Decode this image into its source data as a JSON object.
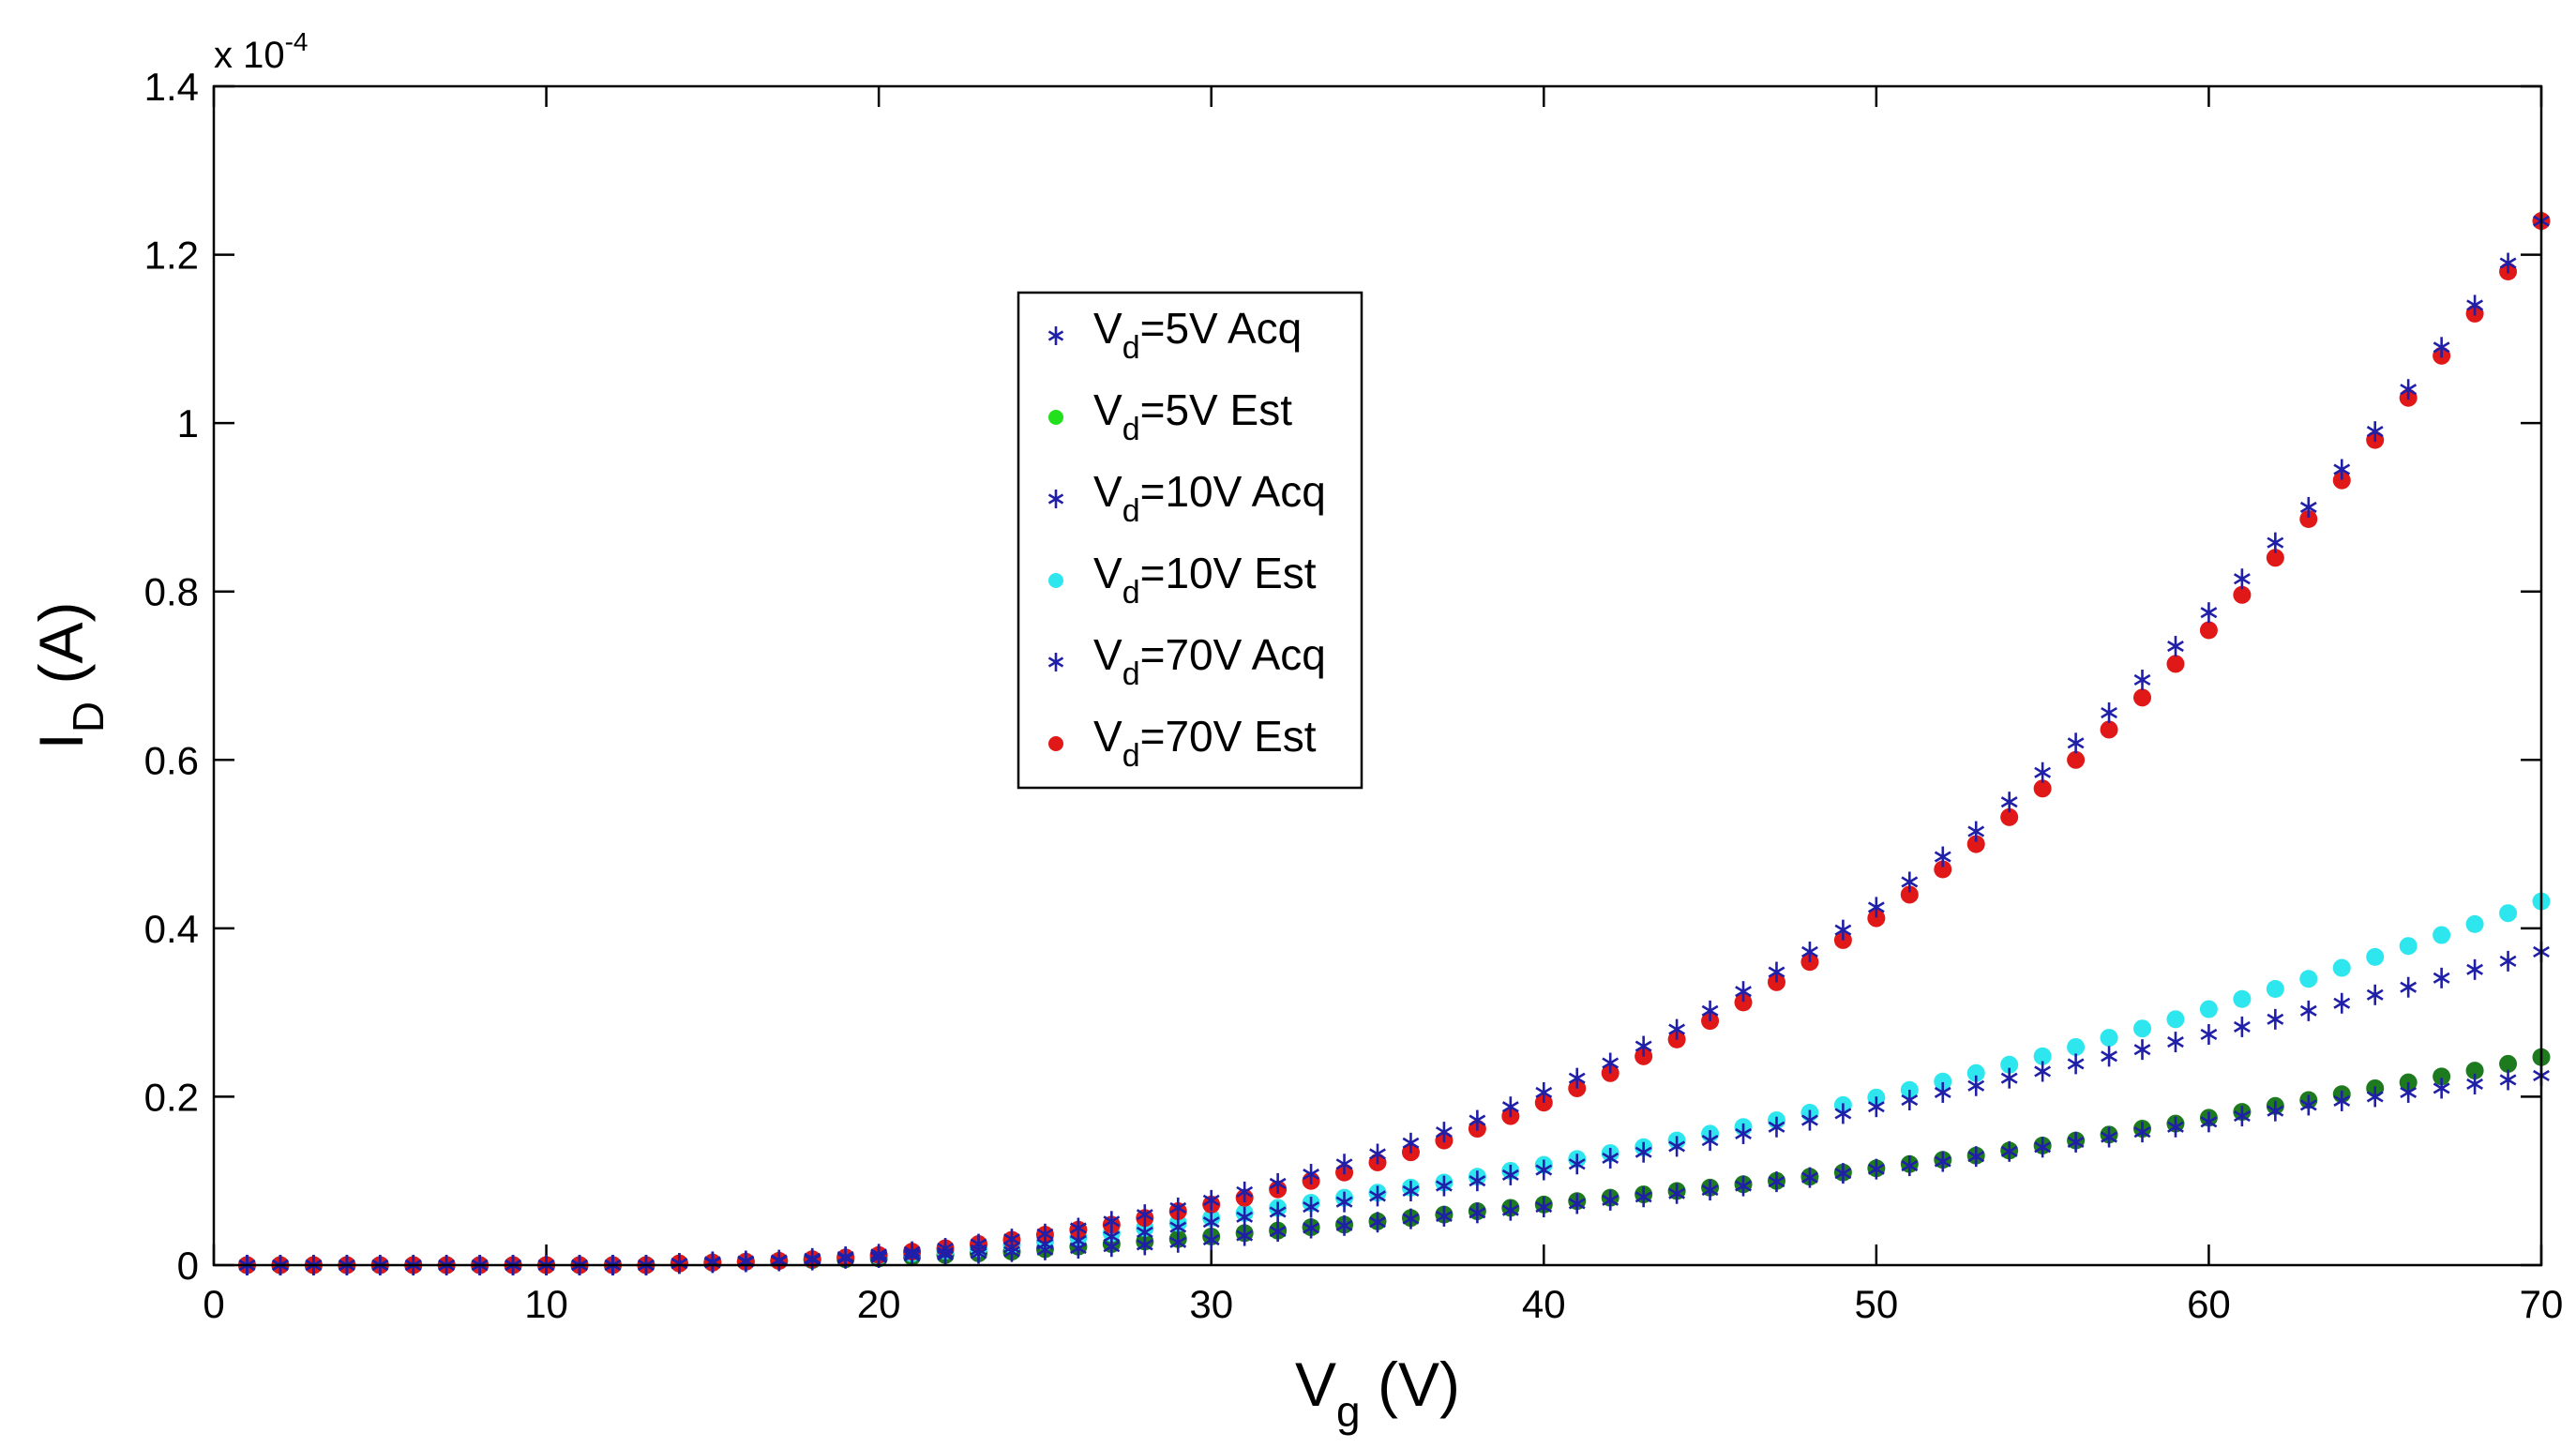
{
  "chart_data": {
    "type": "scatter",
    "title": "",
    "xlabel": {
      "base": "V",
      "sub": "g",
      "rest": " (V)"
    },
    "ylabel": {
      "base": "I",
      "sub": "D",
      "rest": " (A)"
    },
    "xlim": [
      0,
      70
    ],
    "ylim": [
      0,
      1.4
    ],
    "y_multiplier": {
      "prefix": "x 10",
      "exponent": "-4"
    },
    "xticks": [
      0,
      10,
      20,
      30,
      40,
      50,
      60,
      70
    ],
    "xtick_labels": [
      "0",
      "10",
      "20",
      "30",
      "40",
      "50",
      "60",
      "70"
    ],
    "yticks": [
      0,
      0.2,
      0.4,
      0.6,
      0.8,
      1,
      1.2,
      1.4
    ],
    "ytick_labels": [
      "0",
      "0.2",
      "0.4",
      "0.6",
      "0.8",
      "1",
      "1.2",
      "1.4"
    ],
    "grid": false,
    "legend_position": "upper-center",
    "colors": {
      "acq": "#1f1fa8",
      "est_5v_legend": "#22e01c",
      "est_5v_points": "#1e7a1e",
      "est_10v": "#2ee6ee",
      "est_70v": "#e01818"
    },
    "series": [
      {
        "name": "Vd=5V Acq",
        "legend": {
          "base": "V",
          "sub": "d",
          "rest": "=5V Acq"
        },
        "marker": "star",
        "color_key": "acq",
        "legend_color_key": "acq",
        "x": [
          1,
          2,
          3,
          4,
          5,
          6,
          7,
          8,
          9,
          10,
          11,
          12,
          13,
          14,
          15,
          16,
          17,
          18,
          19,
          20,
          21,
          22,
          23,
          24,
          25,
          26,
          27,
          28,
          29,
          30,
          31,
          32,
          33,
          34,
          35,
          36,
          37,
          38,
          39,
          40,
          41,
          42,
          43,
          44,
          45,
          46,
          47,
          48,
          49,
          50,
          51,
          52,
          53,
          54,
          55,
          56,
          57,
          58,
          59,
          60,
          61,
          62,
          63,
          64,
          65,
          66,
          67,
          68,
          69,
          70
        ],
        "y": [
          0,
          0,
          0,
          0,
          0,
          0,
          0,
          0,
          0,
          0,
          0,
          0,
          0,
          0.002,
          0.003,
          0.004,
          0.005,
          0.006,
          0.008,
          0.009,
          0.011,
          0.012,
          0.014,
          0.016,
          0.018,
          0.02,
          0.022,
          0.024,
          0.027,
          0.03,
          0.035,
          0.04,
          0.044,
          0.047,
          0.051,
          0.055,
          0.058,
          0.062,
          0.065,
          0.069,
          0.073,
          0.077,
          0.081,
          0.085,
          0.089,
          0.094,
          0.099,
          0.104,
          0.109,
          0.114,
          0.118,
          0.123,
          0.129,
          0.135,
          0.14,
          0.146,
          0.152,
          0.158,
          0.164,
          0.17,
          0.177,
          0.183,
          0.19,
          0.195,
          0.2,
          0.205,
          0.21,
          0.215,
          0.22,
          0.225
        ]
      },
      {
        "name": "Vd=5V Est",
        "legend": {
          "base": "V",
          "sub": "d",
          "rest": "=5V Est"
        },
        "marker": "dot",
        "color_key": "est_5v_points",
        "legend_color_key": "est_5v_legend",
        "x": [
          1,
          2,
          3,
          4,
          5,
          6,
          7,
          8,
          9,
          10,
          11,
          12,
          13,
          14,
          15,
          16,
          17,
          18,
          19,
          20,
          21,
          22,
          23,
          24,
          25,
          26,
          27,
          28,
          29,
          30,
          31,
          32,
          33,
          34,
          35,
          36,
          37,
          38,
          39,
          40,
          41,
          42,
          43,
          44,
          45,
          46,
          47,
          48,
          49,
          50,
          51,
          52,
          53,
          54,
          55,
          56,
          57,
          58,
          59,
          60,
          61,
          62,
          63,
          64,
          65,
          66,
          67,
          68,
          69,
          70
        ],
        "y": [
          0,
          0,
          0,
          0,
          0,
          0,
          0,
          0,
          0,
          0,
          0,
          0,
          0,
          0.002,
          0.003,
          0.004,
          0.005,
          0.006,
          0.007,
          0.008,
          0.01,
          0.012,
          0.014,
          0.016,
          0.019,
          0.022,
          0.025,
          0.028,
          0.031,
          0.034,
          0.038,
          0.041,
          0.045,
          0.048,
          0.052,
          0.056,
          0.06,
          0.064,
          0.068,
          0.072,
          0.076,
          0.08,
          0.084,
          0.088,
          0.092,
          0.096,
          0.1,
          0.105,
          0.11,
          0.115,
          0.12,
          0.125,
          0.13,
          0.136,
          0.142,
          0.148,
          0.155,
          0.162,
          0.168,
          0.175,
          0.182,
          0.189,
          0.196,
          0.203,
          0.21,
          0.217,
          0.224,
          0.231,
          0.239,
          0.247
        ]
      },
      {
        "name": "Vd=10V Acq",
        "legend": {
          "base": "V",
          "sub": "d",
          "rest": "=10V Acq"
        },
        "marker": "star",
        "color_key": "acq",
        "legend_color_key": "acq",
        "x": [
          1,
          2,
          3,
          4,
          5,
          6,
          7,
          8,
          9,
          10,
          11,
          12,
          13,
          14,
          15,
          16,
          17,
          18,
          19,
          20,
          21,
          22,
          23,
          24,
          25,
          26,
          27,
          28,
          29,
          30,
          31,
          32,
          33,
          34,
          35,
          36,
          37,
          38,
          39,
          40,
          41,
          42,
          43,
          44,
          45,
          46,
          47,
          48,
          49,
          50,
          51,
          52,
          53,
          54,
          55,
          56,
          57,
          58,
          59,
          60,
          61,
          62,
          63,
          64,
          65,
          66,
          67,
          68,
          69,
          70
        ],
        "y": [
          0,
          0,
          0,
          0,
          0,
          0,
          0,
          0,
          0,
          0,
          0,
          0,
          0,
          0.002,
          0.003,
          0.004,
          0.005,
          0.007,
          0.009,
          0.011,
          0.013,
          0.015,
          0.018,
          0.021,
          0.025,
          0.029,
          0.034,
          0.039,
          0.045,
          0.051,
          0.057,
          0.063,
          0.069,
          0.075,
          0.082,
          0.088,
          0.094,
          0.1,
          0.107,
          0.113,
          0.12,
          0.127,
          0.134,
          0.141,
          0.148,
          0.156,
          0.164,
          0.172,
          0.18,
          0.188,
          0.196,
          0.205,
          0.213,
          0.222,
          0.23,
          0.239,
          0.248,
          0.256,
          0.265,
          0.274,
          0.283,
          0.292,
          0.302,
          0.311,
          0.321,
          0.33,
          0.341,
          0.351,
          0.361,
          0.372
        ]
      },
      {
        "name": "Vd=10V Est",
        "legend": {
          "base": "V",
          "sub": "d",
          "rest": "=10V Est"
        },
        "marker": "dot",
        "color_key": "est_10v",
        "legend_color_key": "est_10v",
        "x": [
          1,
          2,
          3,
          4,
          5,
          6,
          7,
          8,
          9,
          10,
          11,
          12,
          13,
          14,
          15,
          16,
          17,
          18,
          19,
          20,
          21,
          22,
          23,
          24,
          25,
          26,
          27,
          28,
          29,
          30,
          31,
          32,
          33,
          34,
          35,
          36,
          37,
          38,
          39,
          40,
          41,
          42,
          43,
          44,
          45,
          46,
          47,
          48,
          49,
          50,
          51,
          52,
          53,
          54,
          55,
          56,
          57,
          58,
          59,
          60,
          61,
          62,
          63,
          64,
          65,
          66,
          67,
          68,
          69,
          70
        ],
        "y": [
          0,
          0,
          0,
          0,
          0,
          0,
          0,
          0,
          0,
          0,
          0,
          0,
          0,
          0.002,
          0.003,
          0.004,
          0.005,
          0.007,
          0.009,
          0.011,
          0.014,
          0.017,
          0.02,
          0.024,
          0.028,
          0.033,
          0.038,
          0.044,
          0.05,
          0.056,
          0.062,
          0.068,
          0.074,
          0.08,
          0.086,
          0.092,
          0.098,
          0.105,
          0.112,
          0.119,
          0.126,
          0.133,
          0.14,
          0.148,
          0.156,
          0.164,
          0.172,
          0.181,
          0.19,
          0.199,
          0.208,
          0.218,
          0.228,
          0.238,
          0.248,
          0.259,
          0.27,
          0.281,
          0.292,
          0.304,
          0.316,
          0.328,
          0.34,
          0.353,
          0.366,
          0.379,
          0.392,
          0.405,
          0.418,
          0.432
        ]
      },
      {
        "name": "Vd=70V Acq",
        "legend": {
          "base": "V",
          "sub": "d",
          "rest": "=70V Acq"
        },
        "marker": "star",
        "color_key": "acq",
        "legend_color_key": "acq",
        "x": [
          1,
          2,
          3,
          4,
          5,
          6,
          7,
          8,
          9,
          10,
          11,
          12,
          13,
          14,
          15,
          16,
          17,
          18,
          19,
          20,
          21,
          22,
          23,
          24,
          25,
          26,
          27,
          28,
          29,
          30,
          31,
          32,
          33,
          34,
          35,
          36,
          37,
          38,
          39,
          40,
          41,
          42,
          43,
          44,
          45,
          46,
          47,
          48,
          49,
          50,
          51,
          52,
          53,
          54,
          55,
          56,
          57,
          58,
          59,
          60,
          61,
          62,
          63,
          64,
          65,
          66,
          67,
          68,
          69,
          70
        ],
        "y": [
          0,
          0,
          0,
          0,
          0,
          0,
          0,
          0,
          0,
          0,
          0,
          0,
          0,
          0.002,
          0.004,
          0.005,
          0.006,
          0.008,
          0.01,
          0.013,
          0.016,
          0.02,
          0.025,
          0.031,
          0.037,
          0.044,
          0.052,
          0.06,
          0.068,
          0.077,
          0.087,
          0.097,
          0.108,
          0.12,
          0.132,
          0.145,
          0.158,
          0.172,
          0.188,
          0.205,
          0.222,
          0.24,
          0.26,
          0.28,
          0.302,
          0.325,
          0.348,
          0.372,
          0.398,
          0.425,
          0.455,
          0.485,
          0.515,
          0.55,
          0.585,
          0.62,
          0.656,
          0.695,
          0.735,
          0.775,
          0.815,
          0.858,
          0.9,
          0.945,
          0.99,
          1.04,
          1.09,
          1.14,
          1.19,
          1.24
        ]
      },
      {
        "name": "Vd=70V Est",
        "legend": {
          "base": "V",
          "sub": "d",
          "rest": "=70V Est"
        },
        "marker": "dot",
        "color_key": "est_70v",
        "legend_color_key": "est_70v",
        "x": [
          1,
          2,
          3,
          4,
          5,
          6,
          7,
          8,
          9,
          10,
          11,
          12,
          13,
          14,
          15,
          16,
          17,
          18,
          19,
          20,
          21,
          22,
          23,
          24,
          25,
          26,
          27,
          28,
          29,
          30,
          31,
          32,
          33,
          34,
          35,
          36,
          37,
          38,
          39,
          40,
          41,
          42,
          43,
          44,
          45,
          46,
          47,
          48,
          49,
          50,
          51,
          52,
          53,
          54,
          55,
          56,
          57,
          58,
          59,
          60,
          61,
          62,
          63,
          64,
          65,
          66,
          67,
          68,
          69,
          70
        ],
        "y": [
          0,
          0,
          0,
          0,
          0,
          0,
          0,
          0,
          0,
          0,
          0,
          0,
          0,
          0.002,
          0.003,
          0.004,
          0.005,
          0.007,
          0.009,
          0.012,
          0.016,
          0.02,
          0.025,
          0.03,
          0.036,
          0.042,
          0.048,
          0.056,
          0.064,
          0.072,
          0.08,
          0.09,
          0.1,
          0.11,
          0.122,
          0.134,
          0.148,
          0.162,
          0.177,
          0.193,
          0.21,
          0.228,
          0.248,
          0.268,
          0.29,
          0.312,
          0.336,
          0.36,
          0.386,
          0.412,
          0.44,
          0.47,
          0.5,
          0.532,
          0.566,
          0.6,
          0.636,
          0.674,
          0.714,
          0.754,
          0.796,
          0.84,
          0.886,
          0.932,
          0.98,
          1.03,
          1.08,
          1.13,
          1.18,
          1.24
        ]
      }
    ]
  }
}
